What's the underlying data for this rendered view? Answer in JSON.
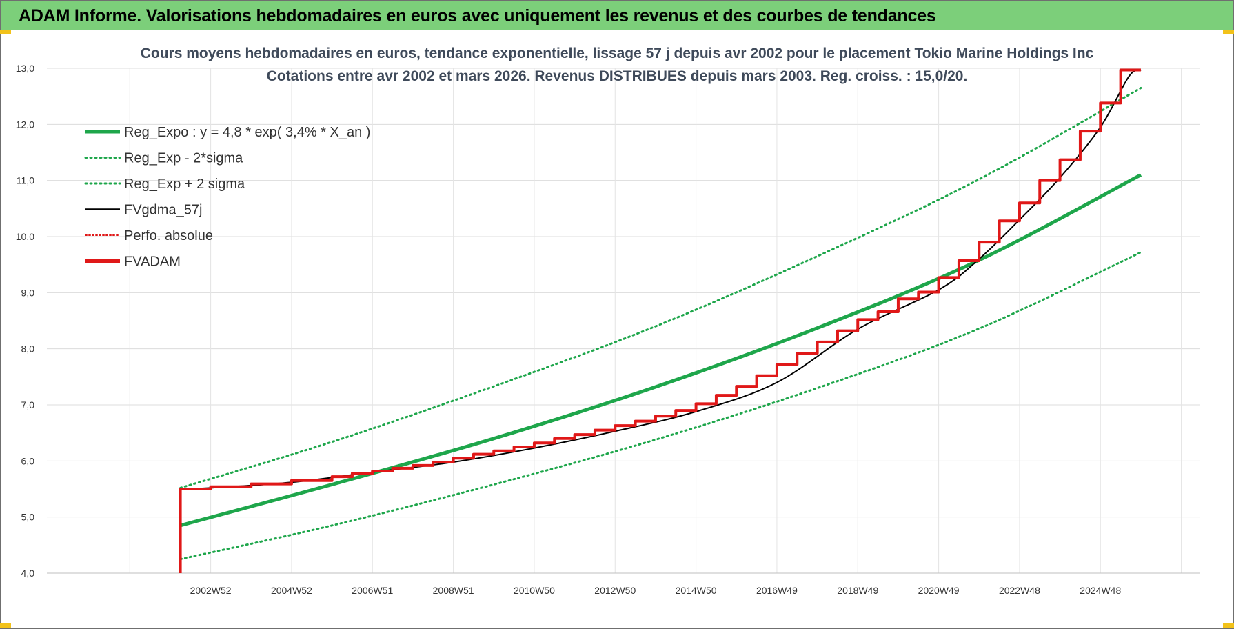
{
  "header": {
    "title": "ADAM Informe. Valorisations hebdomadaires en euros avec uniquement les revenus et des courbes de tendances"
  },
  "chart_data": {
    "type": "line",
    "title_line1": "Cours moyens hebdomadaires en euros, tendance exponentielle, lissage 57 j depuis avr 2002 pour le placement Tokio Marine Holdings Inc",
    "title_line2": "Cotations entre avr 2002 et mars 2026. Revenus DISTRIBUES depuis mars 2003. Reg. croiss. : 15,0/20.",
    "ylim": [
      4.0,
      13.0
    ],
    "y_ticks": [
      "4,0",
      "5,0",
      "6,0",
      "7,0",
      "8,0",
      "9,0",
      "10,0",
      "11,0",
      "12,0",
      "13,0"
    ],
    "x_range": [
      1998.95,
      2027.45
    ],
    "x_ticks": [
      {
        "label": "2002W52",
        "x": 2003.0
      },
      {
        "label": "2004W52",
        "x": 2005.0
      },
      {
        "label": "2006W51",
        "x": 2007.0
      },
      {
        "label": "2008W51",
        "x": 2009.0
      },
      {
        "label": "2010W50",
        "x": 2011.0
      },
      {
        "label": "2012W50",
        "x": 2013.0
      },
      {
        "label": "2014W50",
        "x": 2015.0
      },
      {
        "label": "2016W49",
        "x": 2017.0
      },
      {
        "label": "2018W49",
        "x": 2019.0
      },
      {
        "label": "2020W49",
        "x": 2021.0
      },
      {
        "label": "2022W48",
        "x": 2023.0
      },
      {
        "label": "2024W48",
        "x": 2025.0
      }
    ],
    "grid": true,
    "legend_position": "top-left",
    "legend": [
      {
        "label": "Reg_Expo : y = 4,8 * exp( 3,4% *  X_an )",
        "color": "#1ea64b",
        "style": "solid-thick"
      },
      {
        "label": "Reg_Exp - 2*sigma",
        "color": "#1ea64b",
        "style": "dotted"
      },
      {
        "label": "Reg_Exp + 2 sigma",
        "color": "#1ea64b",
        "style": "dotted"
      },
      {
        "label": "FVgdma_57j",
        "color": "#000000",
        "style": "solid-thin"
      },
      {
        "label": "Perfo. absolue",
        "color": "#e01818",
        "style": "dotted-red"
      },
      {
        "label": "FVADAM",
        "color": "#e01818",
        "style": "solid-thick"
      }
    ],
    "series": [
      {
        "name": "Reg_Expo : y = 4,8 * exp( 3,4% *  X_an )",
        "color": "#1ea64b",
        "x": [
          2002.25,
          2006.0,
          2010.0,
          2014.0,
          2018.0,
          2022.0,
          2026.0
        ],
        "y": [
          4.85,
          5.58,
          6.4,
          7.32,
          8.37,
          9.58,
          11.1
        ]
      },
      {
        "name": "Reg_Exp - 2*sigma",
        "color": "#1ea64b",
        "x": [
          2002.25,
          2006.0,
          2010.0,
          2014.0,
          2018.0,
          2022.0,
          2026.0
        ],
        "y": [
          4.25,
          4.85,
          5.58,
          6.38,
          7.3,
          8.36,
          9.72
        ]
      },
      {
        "name": "Reg_Exp + 2 sigma",
        "color": "#1ea64b",
        "x": [
          2002.25,
          2006.0,
          2010.0,
          2014.0,
          2018.0,
          2022.0,
          2026.0
        ],
        "y": [
          5.52,
          6.34,
          7.33,
          8.4,
          9.65,
          11.02,
          12.65
        ]
      },
      {
        "name": "FVgdma_57j",
        "color": "#000000",
        "x": [
          2002.25,
          2003.0,
          2005.0,
          2007.0,
          2009.0,
          2011.0,
          2013.0,
          2015.0,
          2017.0,
          2019.0,
          2021.0,
          2022.0,
          2023.0,
          2024.0,
          2025.0,
          2025.7,
          2026.0
        ],
        "y": [
          5.5,
          5.52,
          5.62,
          5.8,
          5.98,
          6.23,
          6.53,
          6.88,
          7.4,
          8.35,
          9.05,
          9.6,
          10.3,
          11.05,
          11.95,
          12.85,
          12.97
        ]
      },
      {
        "name": "FVADAM",
        "color": "#e01818",
        "x": [
          2002.25,
          2002.25,
          2003.0,
          2004.0,
          2005.0,
          2006.0,
          2006.5,
          2007.0,
          2007.5,
          2008.0,
          2008.5,
          2009.0,
          2009.5,
          2010.0,
          2010.5,
          2011.0,
          2011.5,
          2012.0,
          2012.5,
          2013.0,
          2013.5,
          2014.0,
          2014.5,
          2015.0,
          2015.5,
          2016.0,
          2016.5,
          2017.0,
          2017.5,
          2018.0,
          2018.5,
          2019.0,
          2019.5,
          2020.0,
          2020.5,
          2021.0,
          2021.5,
          2022.0,
          2022.5,
          2023.0,
          2023.5,
          2024.0,
          2024.5,
          2025.0,
          2025.5,
          2026.0
        ],
        "y": [
          4.0,
          5.5,
          5.54,
          5.59,
          5.65,
          5.72,
          5.78,
          5.82,
          5.87,
          5.92,
          5.98,
          6.05,
          6.12,
          6.18,
          6.25,
          6.32,
          6.4,
          6.47,
          6.55,
          6.63,
          6.71,
          6.8,
          6.9,
          7.02,
          7.17,
          7.33,
          7.52,
          7.72,
          7.92,
          8.12,
          8.32,
          8.52,
          8.66,
          8.89,
          9.01,
          9.27,
          9.57,
          9.9,
          10.28,
          10.6,
          11.0,
          11.37,
          11.88,
          12.38,
          12.97,
          12.97
        ]
      }
    ]
  }
}
